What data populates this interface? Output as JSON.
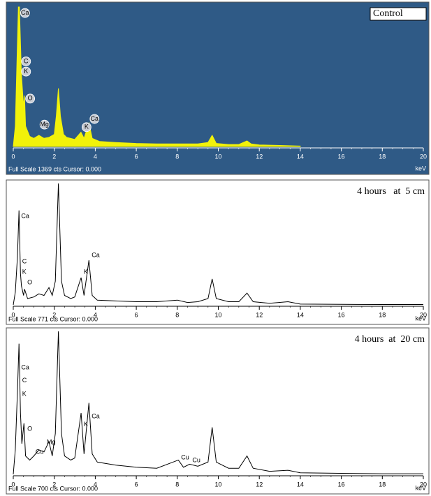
{
  "chart_data": [
    {
      "type": "area",
      "title": "Control",
      "title_box": true,
      "background": "#2f5a86",
      "color": "#f2f20a",
      "axis_color": "#ffffff",
      "footer": "Full Scale 1369 cts Cursor: 0.000",
      "x_label": "keV",
      "xlim": [
        0,
        20
      ],
      "xticks": [
        0,
        2,
        4,
        6,
        8,
        10,
        12,
        14,
        16,
        18,
        20
      ],
      "ylim": [
        0,
        1369
      ],
      "x": [
        0,
        0.1,
        0.2,
        0.25,
        0.3,
        0.4,
        0.5,
        0.55,
        0.6,
        0.8,
        1.0,
        1.25,
        1.5,
        1.74,
        2.0,
        2.1,
        2.2,
        2.3,
        2.45,
        2.6,
        3.0,
        3.3,
        3.45,
        3.69,
        3.85,
        4.2,
        5,
        6,
        7,
        8,
        9,
        9.5,
        9.7,
        9.9,
        10.5,
        11,
        11.4,
        11.6,
        12,
        13,
        14
      ],
      "values": [
        0,
        200,
        1000,
        1369,
        1369,
        700,
        400,
        500,
        200,
        100,
        80,
        110,
        80,
        90,
        120,
        300,
        570,
        300,
        120,
        90,
        70,
        140,
        80,
        230,
        80,
        50,
        40,
        30,
        25,
        25,
        25,
        40,
        110,
        30,
        20,
        20,
        55,
        25,
        15,
        10,
        5
      ],
      "peak_labels": [
        {
          "text": "Ca",
          "x": 0.3,
          "y": 1310
        },
        {
          "text": "C",
          "x": 0.35,
          "y": 835
        },
        {
          "text": "K",
          "x": 0.35,
          "y": 735
        },
        {
          "text": "O",
          "x": 0.55,
          "y": 470
        },
        {
          "text": "Mg",
          "x": 1.25,
          "y": 215
        },
        {
          "text": "K",
          "x": 3.3,
          "y": 190
        },
        {
          "text": "Ca",
          "x": 3.69,
          "y": 270
        }
      ]
    },
    {
      "type": "line",
      "title": "4 hours   at  5 cm",
      "color": "#000000",
      "axis_color": "#000000",
      "footer": "Full Scale 771 cts Cursor: 0.000",
      "x_label": "keV",
      "xlim": [
        0,
        20
      ],
      "xticks": [
        0,
        2,
        4,
        6,
        8,
        10,
        12,
        14,
        16,
        18,
        20
      ],
      "ylim": [
        0,
        771
      ],
      "x": [
        0,
        0.1,
        0.2,
        0.28,
        0.35,
        0.4,
        0.5,
        0.55,
        0.7,
        1.0,
        1.25,
        1.5,
        1.74,
        1.9,
        2.05,
        2.2,
        2.35,
        2.5,
        2.8,
        3.0,
        3.31,
        3.45,
        3.69,
        3.85,
        4.1,
        5,
        6,
        7,
        8,
        8.5,
        9,
        9.5,
        9.7,
        9.9,
        10.5,
        11,
        11.4,
        11.7,
        12.5,
        13.4,
        14,
        16,
        18,
        20
      ],
      "values": [
        0,
        80,
        300,
        600,
        200,
        120,
        60,
        100,
        40,
        50,
        70,
        60,
        110,
        60,
        150,
        771,
        150,
        60,
        40,
        50,
        173,
        60,
        283,
        60,
        30,
        25,
        20,
        20,
        30,
        15,
        20,
        40,
        165,
        40,
        20,
        20,
        75,
        20,
        10,
        20,
        5,
        3,
        2,
        2
      ],
      "peak_labels": [
        {
          "text": "Ca",
          "x": 0.25,
          "y": 563
        },
        {
          "text": "C",
          "x": 0.3,
          "y": 275
        },
        {
          "text": "K",
          "x": 0.3,
          "y": 208
        },
        {
          "text": "O",
          "x": 0.55,
          "y": 142
        },
        {
          "text": "K",
          "x": 3.3,
          "y": 208
        },
        {
          "text": "Ca",
          "x": 3.69,
          "y": 315
        }
      ]
    },
    {
      "type": "line",
      "title": "4 hours  at  20 cm",
      "color": "#000000",
      "axis_color": "#000000",
      "footer": "Full Scale 700 cts Cursor: 0.000",
      "x_label": "keV",
      "xlim": [
        0,
        20
      ],
      "xticks": [
        0,
        2,
        4,
        6,
        8,
        10,
        12,
        14,
        16,
        18,
        20
      ],
      "ylim": [
        0,
        700
      ],
      "x": [
        0,
        0.1,
        0.2,
        0.28,
        0.35,
        0.42,
        0.52,
        0.6,
        0.8,
        1.0,
        1.25,
        1.5,
        1.74,
        1.9,
        2.05,
        2.2,
        2.35,
        2.5,
        2.8,
        3.0,
        3.31,
        3.45,
        3.69,
        3.85,
        4.1,
        5,
        6,
        7,
        8.05,
        8.3,
        8.6,
        9,
        9.5,
        9.7,
        9.9,
        10.5,
        11,
        11.4,
        11.7,
        12.5,
        13.4,
        14,
        16,
        18,
        20
      ],
      "values": [
        0,
        120,
        400,
        640,
        300,
        150,
        250,
        90,
        70,
        90,
        120,
        110,
        160,
        90,
        200,
        700,
        200,
        90,
        70,
        80,
        300,
        100,
        350,
        100,
        60,
        45,
        35,
        30,
        70,
        35,
        50,
        40,
        60,
        230,
        60,
        30,
        30,
        90,
        30,
        15,
        20,
        8,
        5,
        3,
        3
      ],
      "peak_labels": [
        {
          "text": "Ca",
          "x": 0.25,
          "y": 522
        },
        {
          "text": "C",
          "x": 0.3,
          "y": 458
        },
        {
          "text": "K",
          "x": 0.3,
          "y": 392
        },
        {
          "text": "O",
          "x": 0.55,
          "y": 222
        },
        {
          "text": "Mg",
          "x": 1.5,
          "y": 157
        },
        {
          "text": "Cu",
          "x": 0.95,
          "y": 109
        },
        {
          "text": "K",
          "x": 3.3,
          "y": 243
        },
        {
          "text": "Ca",
          "x": 3.69,
          "y": 283
        },
        {
          "text": "Cu",
          "x": 8.05,
          "y": 82
        },
        {
          "text": "Cu",
          "x": 8.6,
          "y": 68
        }
      ]
    }
  ]
}
